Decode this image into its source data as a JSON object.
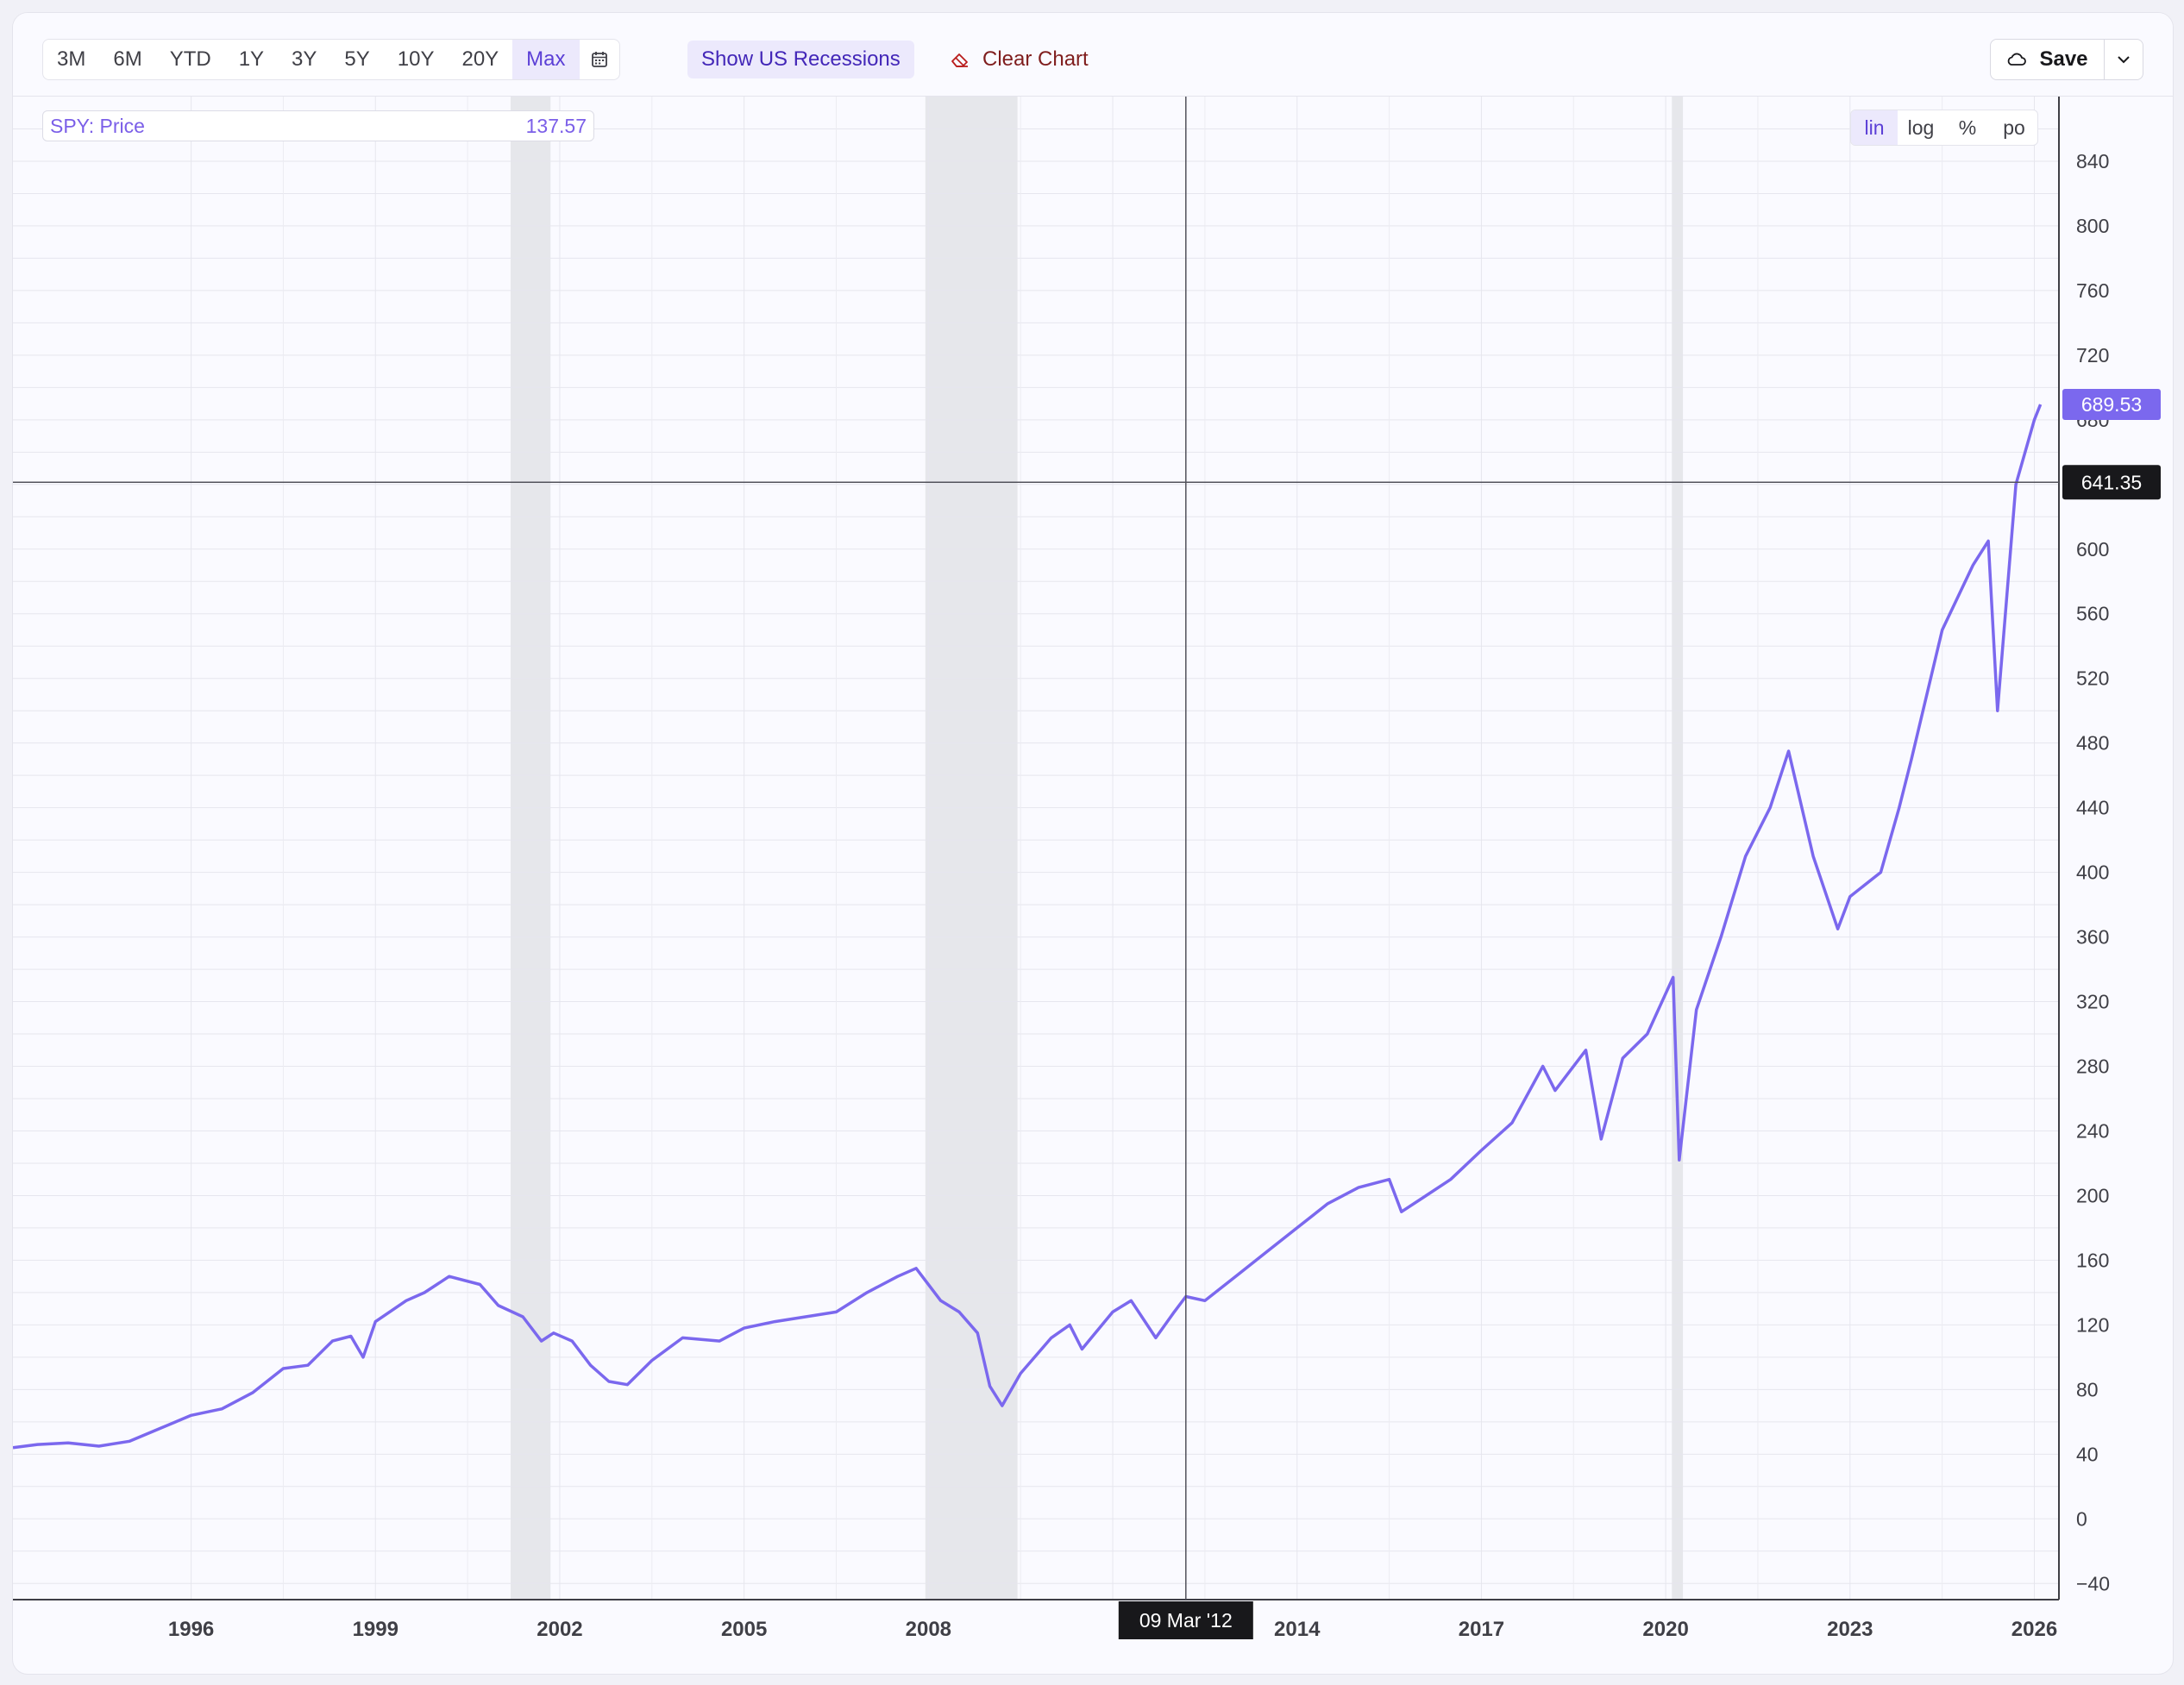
{
  "toolbar": {
    "ranges": [
      "3M",
      "6M",
      "YTD",
      "1Y",
      "3Y",
      "5Y",
      "10Y",
      "20Y",
      "Max"
    ],
    "active_range": "Max",
    "recessions_label": "Show US Recessions",
    "clear_label": "Clear Chart",
    "save_label": "Save"
  },
  "legend": {
    "series_label": "SPY: Price",
    "hover_value": "137.57"
  },
  "scale_modes": [
    "lin",
    "log",
    "%",
    "po"
  ],
  "active_scale": "lin",
  "colors": {
    "line": "#7b68ee",
    "accent": "#6d4fe0",
    "recession": "#e6e7eb",
    "crosshair_bg": "#18181b"
  },
  "crosshair": {
    "date_label": "09 Mar '12",
    "price_label": "641.35",
    "price": 641.35,
    "date": 2012.19
  },
  "last_price": {
    "label": "689.53",
    "value": 689.53
  },
  "chart_data": {
    "type": "line",
    "title": "",
    "series": [
      {
        "name": "SPY: Price",
        "x": [
          1993.1,
          1993.5,
          1994.0,
          1994.5,
          1995.0,
          1995.5,
          1996.0,
          1996.5,
          1997.0,
          1997.5,
          1997.9,
          1998.3,
          1998.6,
          1998.8,
          1999.0,
          1999.5,
          1999.8,
          2000.2,
          2000.7,
          2001.0,
          2001.4,
          2001.7,
          2001.9,
          2002.2,
          2002.5,
          2002.8,
          2003.1,
          2003.5,
          2004.0,
          2004.6,
          2005.0,
          2005.5,
          2006.0,
          2006.5,
          2007.0,
          2007.5,
          2007.8,
          2008.2,
          2008.5,
          2008.8,
          2009.0,
          2009.2,
          2009.5,
          2010.0,
          2010.3,
          2010.5,
          2011.0,
          2011.3,
          2011.7,
          2012.0,
          2012.19,
          2012.5,
          2013.0,
          2013.5,
          2014.0,
          2014.5,
          2015.0,
          2015.5,
          2015.7,
          2016.1,
          2016.5,
          2017.0,
          2017.5,
          2018.0,
          2018.2,
          2018.7,
          2018.95,
          2019.3,
          2019.7,
          2020.0,
          2020.12,
          2020.22,
          2020.5,
          2020.9,
          2021.3,
          2021.7,
          2022.0,
          2022.4,
          2022.8,
          2023.0,
          2023.5,
          2023.8,
          2024.0,
          2024.5,
          2025.0,
          2025.25,
          2025.4,
          2025.7,
          2026.0,
          2026.1
        ],
        "y": [
          44,
          46,
          47,
          45,
          48,
          56,
          64,
          68,
          78,
          93,
          95,
          110,
          113,
          100,
          122,
          135,
          140,
          150,
          145,
          132,
          125,
          110,
          115,
          110,
          95,
          85,
          83,
          98,
          112,
          110,
          118,
          122,
          125,
          128,
          140,
          150,
          155,
          135,
          128,
          115,
          82,
          70,
          90,
          112,
          120,
          105,
          128,
          135,
          112,
          128,
          137.57,
          135,
          150,
          165,
          180,
          195,
          205,
          210,
          190,
          200,
          210,
          228,
          245,
          280,
          265,
          290,
          235,
          285,
          300,
          325,
          335,
          222,
          315,
          360,
          410,
          440,
          475,
          410,
          365,
          385,
          400,
          440,
          470,
          550,
          590,
          605,
          500,
          640,
          680,
          689.53
        ]
      }
    ],
    "xlabel": "",
    "ylabel": "",
    "x_ticks": [
      "1996",
      "1999",
      "2002",
      "2005",
      "2008",
      "2014",
      "2017",
      "2020",
      "2023",
      "2026"
    ],
    "x_tick_values": [
      1996,
      1999,
      2002,
      2005,
      2008,
      2014,
      2017,
      2020,
      2023,
      2026
    ],
    "y_ticks": [
      "840",
      "800",
      "760",
      "720",
      "680",
      "600",
      "560",
      "520",
      "480",
      "440",
      "400",
      "360",
      "320",
      "280",
      "240",
      "200",
      "160",
      "120",
      "80",
      "40",
      "0",
      "−40"
    ],
    "y_tick_values": [
      840,
      800,
      760,
      720,
      680,
      600,
      560,
      520,
      480,
      440,
      400,
      360,
      320,
      280,
      240,
      200,
      160,
      120,
      80,
      40,
      0,
      -40
    ],
    "xlim": [
      1993.1,
      2026.4
    ],
    "ylim": [
      -50,
      880
    ],
    "grid": true,
    "recessions": [
      [
        2001.2,
        2001.85
      ],
      [
        2007.95,
        2009.45
      ],
      [
        2020.1,
        2020.28
      ]
    ]
  }
}
